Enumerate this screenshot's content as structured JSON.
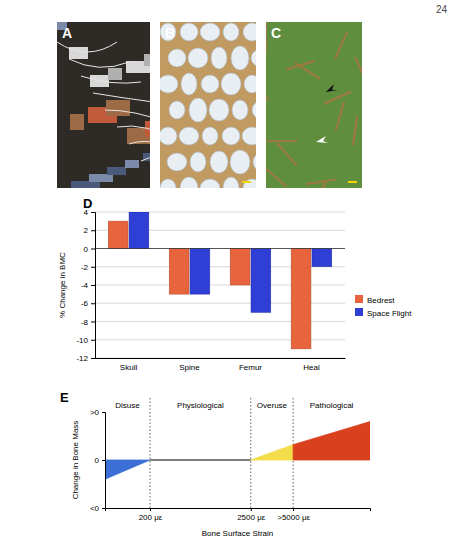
{
  "page_number": 24,
  "photos": [
    {
      "letter": "A"
    },
    {
      "letter": "B"
    },
    {
      "letter": "C"
    }
  ],
  "chart_data": [
    {
      "letter": "D",
      "type": "bar",
      "ylabel": "% Change in BMC",
      "categories": [
        "Skull",
        "Spine",
        "Femur",
        "Heal"
      ],
      "series": [
        {
          "name": "Bedrest",
          "color": "#e8643c",
          "values": [
            3,
            -5,
            -4,
            -11
          ]
        },
        {
          "name": "Space Flight",
          "color": "#2f3fd6",
          "values": [
            4,
            -5,
            -7,
            -2
          ]
        }
      ],
      "ylim": [
        -12,
        4
      ],
      "yticks": [
        -12,
        -10,
        -8,
        -6,
        -4,
        -2,
        0,
        2,
        4
      ],
      "grid": true,
      "legend": "right"
    },
    {
      "letter": "E",
      "type": "area",
      "xlabel": "Bone Surface Strain",
      "ylabel": "Change in Bone Mass",
      "series": [
        {
          "name": "Disuse",
          "type": "area",
          "color": "#3b6fd6",
          "x": [
            0,
            200
          ],
          "values": [
            -0.4,
            0
          ]
        },
        {
          "name": "Physiological",
          "type": "line",
          "color": "#000000",
          "x": [
            200,
            2500
          ],
          "values": [
            0,
            0
          ]
        },
        {
          "name": "Overuse",
          "type": "area",
          "color": "#f2dc4a",
          "x": [
            2500,
            5000
          ],
          "values": [
            0,
            0.32
          ]
        },
        {
          "name": "Pathological",
          "type": "area",
          "color": "#d9401e",
          "x": [
            5000,
            8000
          ],
          "values": [
            0.32,
            0.8
          ]
        }
      ],
      "xlim": [
        0,
        8000
      ],
      "xticks": [
        {
          "value": 200,
          "label": "200 με"
        },
        {
          "value": 2500,
          "label": "2500 με"
        },
        {
          "value": 5000,
          "label": ">5000 με"
        }
      ],
      "ylim": [
        -1,
        1
      ],
      "yticks": [
        {
          "value": -1,
          "label": "<0"
        },
        0,
        {
          "value": 1,
          "label": ">0"
        }
      ],
      "grid": true
    }
  ]
}
